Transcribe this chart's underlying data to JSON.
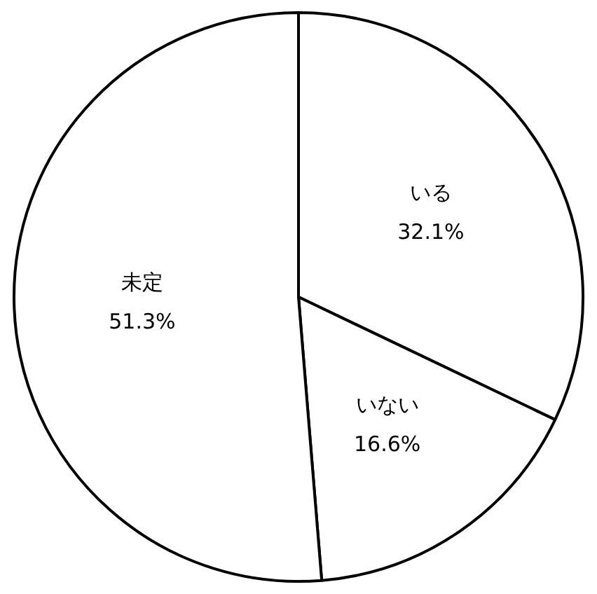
{
  "chart_data": {
    "type": "pie",
    "categories": [
      "いる",
      "いない",
      "未定"
    ],
    "values": [
      32.1,
      16.6,
      51.3
    ],
    "colors": [
      "#ffffff",
      "#ffffff",
      "#ffffff"
    ],
    "value_labels": [
      "32.1%",
      "16.6%",
      "51.3%"
    ],
    "legend": false
  }
}
